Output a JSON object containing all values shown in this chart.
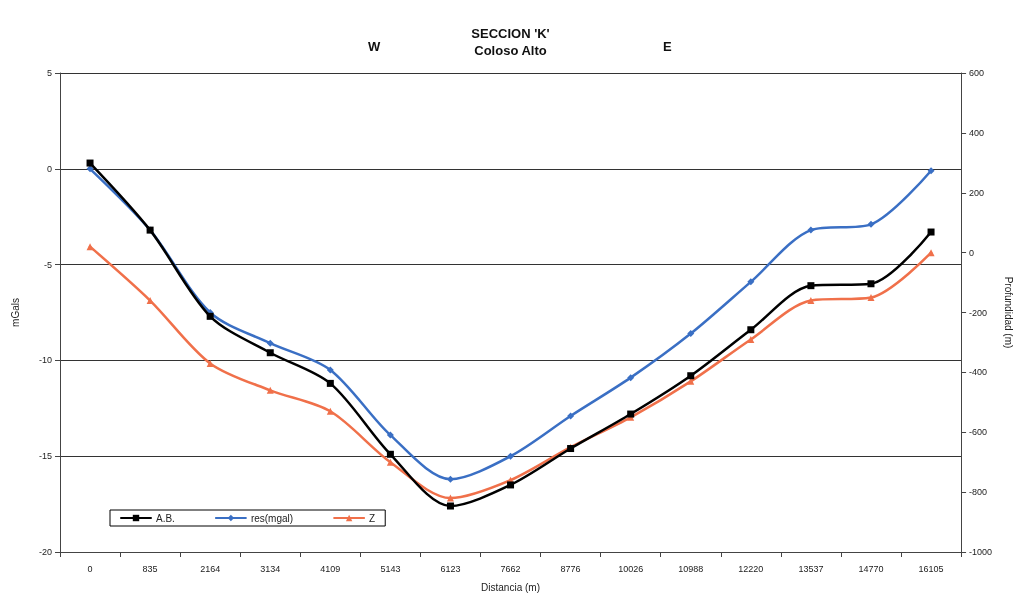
{
  "chart_data": {
    "type": "line",
    "title": "SECCION 'K'",
    "subtitle": "Coloso Alto",
    "annotations": [
      "W",
      "E"
    ],
    "xlabel": "Distancia (m)",
    "ylabel": "mGals",
    "y2label": "Profundidad (m)",
    "categories": [
      "0",
      "835",
      "2164",
      "3134",
      "4109",
      "5143",
      "6123",
      "7662",
      "8776",
      "10026",
      "10988",
      "12220",
      "13537",
      "14770",
      "16105"
    ],
    "series": [
      {
        "name": "A.B.",
        "color": "#000000",
        "marker": "square",
        "values": [
          0.3,
          -3.2,
          -7.7,
          -9.6,
          -11.2,
          -14.9,
          -17.6,
          -16.5,
          -14.6,
          -12.8,
          -10.8,
          -8.4,
          -6.1,
          -6.0,
          -3.3
        ]
      },
      {
        "name": "res(mgal)",
        "color": "#3a6fc4",
        "marker": "diamond",
        "values": [
          0,
          -3.2,
          -7.5,
          -9.1,
          -10.5,
          -13.9,
          -16.2,
          -15.0,
          -12.9,
          -10.9,
          -8.6,
          -5.9,
          -3.2,
          -2.9,
          -0.1
        ]
      },
      {
        "name": "Z",
        "color": "#f0704a",
        "marker": "triangle",
        "axis": "y2",
        "values": [
          20,
          -160,
          -370,
          -460,
          -530,
          -700,
          -820,
          -760,
          -650,
          -550,
          -430,
          -290,
          -160,
          -150,
          0
        ]
      }
    ],
    "ylim": [
      -20,
      5
    ],
    "yticks": [
      -20,
      -15,
      -10,
      -5,
      0,
      5
    ],
    "y2lim": [
      -1000,
      600
    ],
    "y2ticks": [
      -1000,
      -800,
      -600,
      -400,
      -200,
      0,
      200,
      400,
      600
    ],
    "grid": "y",
    "legend": "bottom left",
    "line_style": "solid"
  }
}
